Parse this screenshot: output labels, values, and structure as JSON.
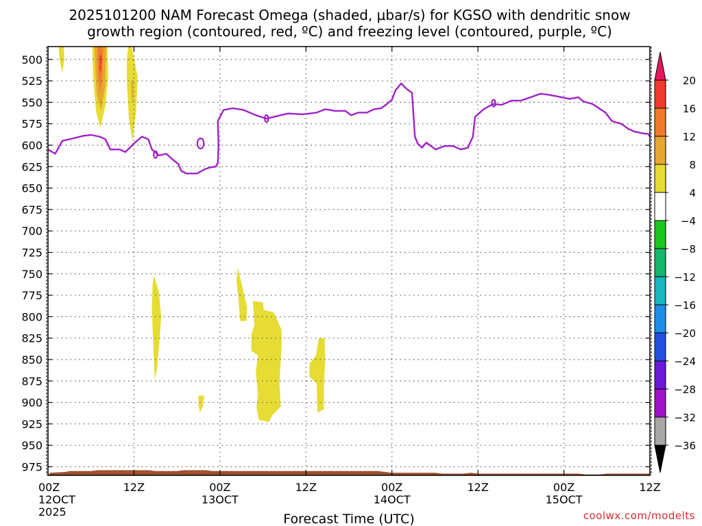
{
  "chart_data": {
    "type": "heatmap",
    "title_lines": [
      "2025101200 NAM Forecast Omega (shaded, μbar/s) for KGSO with dendritic snow",
      "growth region (contoured, red, ºC) and freezing level (contoured, purple, ºC)"
    ],
    "xlabel": "Forecast Time (UTC)",
    "credit": "coolwx.com/modelts",
    "y_axis": {
      "ticks": [
        500,
        525,
        550,
        575,
        600,
        625,
        650,
        675,
        700,
        725,
        750,
        775,
        800,
        825,
        850,
        875,
        900,
        925,
        950,
        975
      ],
      "range": [
        985,
        485
      ],
      "units": "hPa"
    },
    "x_axis": {
      "range_hours": [
        0,
        84
      ],
      "ticks": [
        {
          "hour": 0,
          "line1": "00Z",
          "line2": "12OCT",
          "line3": "2025"
        },
        {
          "hour": 12,
          "line1": "12Z",
          "line2": "",
          "line3": ""
        },
        {
          "hour": 24,
          "line1": "00Z",
          "line2": "13OCT",
          "line3": ""
        },
        {
          "hour": 36,
          "line1": "12Z",
          "line2": "",
          "line3": ""
        },
        {
          "hour": 48,
          "line1": "00Z",
          "line2": "14OCT",
          "line3": ""
        },
        {
          "hour": 60,
          "line1": "12Z",
          "line2": "",
          "line3": ""
        },
        {
          "hour": 72,
          "line1": "00Z",
          "line2": "15OCT",
          "line3": ""
        },
        {
          "hour": 84,
          "line1": "12Z",
          "line2": "",
          "line3": ""
        }
      ]
    },
    "colorbar": {
      "labels": [
        20,
        16,
        12,
        8,
        4,
        -4,
        -8,
        -12,
        -16,
        -20,
        -24,
        -28,
        -32,
        -36
      ],
      "segments": [
        {
          "color": "#e8175d"
        },
        {
          "color": "#f03a2e"
        },
        {
          "color": "#ef7b2a"
        },
        {
          "color": "#e6a733"
        },
        {
          "color": "#e6dc33"
        },
        {
          "color": "#ffffff"
        },
        {
          "color": "#1cc61c"
        },
        {
          "color": "#17b56d"
        },
        {
          "color": "#19b7c0"
        },
        {
          "color": "#1e8fe6"
        },
        {
          "color": "#2350e0"
        },
        {
          "color": "#6a19d6"
        },
        {
          "color": "#a012c8"
        },
        {
          "color": "#a6a6a6"
        },
        {
          "color": "#000000"
        }
      ]
    },
    "omega_shaded_regions": [
      {
        "level": 4,
        "points": [
          [
            1.5,
            485
          ],
          [
            2.2,
            485
          ],
          [
            2.3,
            500
          ],
          [
            2.0,
            515
          ],
          [
            1.6,
            500
          ]
        ]
      },
      {
        "level": 4,
        "points": [
          [
            6.2,
            485
          ],
          [
            8.3,
            485
          ],
          [
            8.4,
            520
          ],
          [
            8.0,
            555
          ],
          [
            7.3,
            580
          ],
          [
            6.7,
            560
          ],
          [
            6.3,
            520
          ]
        ]
      },
      {
        "level": 8,
        "points": [
          [
            6.5,
            485
          ],
          [
            8.1,
            485
          ],
          [
            8.0,
            530
          ],
          [
            7.4,
            560
          ],
          [
            6.8,
            540
          ],
          [
            6.6,
            510
          ]
        ]
      },
      {
        "level": 12,
        "points": [
          [
            6.9,
            485
          ],
          [
            7.7,
            485
          ],
          [
            7.6,
            515
          ],
          [
            7.3,
            540
          ],
          [
            7.0,
            520
          ]
        ]
      },
      {
        "level": 16,
        "points": [
          [
            7.2,
            495
          ],
          [
            7.5,
            495
          ],
          [
            7.4,
            515
          ],
          [
            7.2,
            512
          ]
        ]
      },
      {
        "level": 4,
        "points": [
          [
            11.2,
            485
          ],
          [
            11.7,
            485
          ],
          [
            12.5,
            520
          ],
          [
            12.3,
            560
          ],
          [
            11.8,
            595
          ],
          [
            11.3,
            570
          ],
          [
            11.0,
            525
          ],
          [
            11.0,
            500
          ]
        ]
      },
      {
        "level": 8,
        "points": [
          [
            11.6,
            525
          ],
          [
            11.9,
            525
          ],
          [
            11.9,
            545
          ],
          [
            11.7,
            550
          ]
        ]
      },
      {
        "level": 4,
        "points": [
          [
            14.8,
            752
          ],
          [
            15.5,
            772
          ],
          [
            15.8,
            800
          ],
          [
            15.5,
            835
          ],
          [
            15.2,
            862
          ],
          [
            14.9,
            873
          ],
          [
            14.7,
            835
          ],
          [
            14.5,
            790
          ],
          [
            14.6,
            762
          ]
        ]
      },
      {
        "level": 4,
        "points": [
          [
            21.0,
            892
          ],
          [
            21.8,
            892
          ],
          [
            21.6,
            905
          ],
          [
            21.2,
            912
          ],
          [
            21.0,
            902
          ]
        ]
      },
      {
        "level": 4,
        "points": [
          [
            26.5,
            743
          ],
          [
            27.2,
            768
          ],
          [
            27.8,
            790
          ],
          [
            27.7,
            805
          ],
          [
            26.8,
            805
          ],
          [
            26.6,
            780
          ],
          [
            26.3,
            758
          ]
        ]
      },
      {
        "level": 4,
        "points": [
          [
            28.6,
            782
          ],
          [
            30.0,
            783
          ],
          [
            30.1,
            792
          ],
          [
            31.5,
            795
          ],
          [
            32.6,
            815
          ],
          [
            32.6,
            835
          ],
          [
            32.3,
            878
          ],
          [
            32.5,
            905
          ],
          [
            31.3,
            915
          ],
          [
            30.8,
            923
          ],
          [
            29.4,
            920
          ],
          [
            29.1,
            905
          ],
          [
            29.3,
            890
          ],
          [
            29.0,
            865
          ],
          [
            29.3,
            845
          ],
          [
            28.4,
            840
          ],
          [
            28.4,
            820
          ],
          [
            28.8,
            810
          ]
        ]
      },
      {
        "level": 4,
        "points": [
          [
            37.8,
            825
          ],
          [
            38.6,
            825
          ],
          [
            38.7,
            850
          ],
          [
            38.5,
            880
          ],
          [
            38.5,
            908
          ],
          [
            37.6,
            912
          ],
          [
            37.5,
            878
          ],
          [
            36.5,
            870
          ],
          [
            36.5,
            855
          ],
          [
            37.4,
            845
          ]
        ]
      }
    ],
    "freezing_level_0C": [
      [
        0.0,
        605
      ],
      [
        1.0,
        610
      ],
      [
        2.0,
        595
      ],
      [
        3.5,
        592
      ],
      [
        5.0,
        589
      ],
      [
        6.0,
        588
      ],
      [
        7.2,
        590
      ],
      [
        8.0,
        593
      ],
      [
        8.7,
        605
      ],
      [
        10.0,
        605
      ],
      [
        10.8,
        608
      ],
      [
        12.0,
        598
      ],
      [
        13.1,
        590
      ],
      [
        14.0,
        593
      ],
      [
        14.5,
        605
      ],
      [
        15.5,
        612
      ],
      [
        16.5,
        610
      ],
      [
        17.3,
        616
      ],
      [
        18.2,
        622
      ],
      [
        18.6,
        630
      ],
      [
        19.3,
        633
      ],
      [
        20.8,
        633
      ],
      [
        21.9,
        628
      ],
      [
        22.6,
        626
      ],
      [
        23.4,
        625
      ],
      [
        23.7,
        621
      ],
      [
        23.8,
        600
      ],
      [
        23.7,
        572
      ],
      [
        24.5,
        559
      ],
      [
        25.8,
        557
      ],
      [
        27.3,
        559
      ],
      [
        29.0,
        565
      ],
      [
        30.5,
        569
      ],
      [
        32.0,
        566
      ],
      [
        33.5,
        563
      ],
      [
        35.5,
        564
      ],
      [
        37.5,
        562
      ],
      [
        38.7,
        558
      ],
      [
        40.0,
        560
      ],
      [
        41.5,
        560
      ],
      [
        42.3,
        565
      ],
      [
        43.3,
        562
      ],
      [
        44.5,
        562
      ],
      [
        45.5,
        558
      ],
      [
        46.5,
        557
      ],
      [
        47.3,
        552
      ],
      [
        48.0,
        547
      ],
      [
        48.5,
        536
      ],
      [
        49.3,
        528
      ],
      [
        50.0,
        534
      ],
      [
        50.8,
        539
      ],
      [
        51.2,
        590
      ],
      [
        51.6,
        598
      ],
      [
        52.2,
        603
      ],
      [
        52.8,
        597
      ],
      [
        53.3,
        600
      ],
      [
        54.1,
        605
      ],
      [
        55.3,
        601
      ],
      [
        56.5,
        601
      ],
      [
        57.6,
        605
      ],
      [
        58.6,
        603
      ],
      [
        59.3,
        590
      ],
      [
        59.6,
        567
      ],
      [
        60.8,
        558
      ],
      [
        62.1,
        552
      ],
      [
        63.3,
        553
      ],
      [
        64.7,
        548
      ],
      [
        66.0,
        548
      ],
      [
        67.4,
        544
      ],
      [
        68.7,
        540
      ],
      [
        69.7,
        541
      ],
      [
        71.0,
        543
      ],
      [
        72.8,
        546
      ],
      [
        74.0,
        544
      ],
      [
        74.7,
        549
      ],
      [
        76.0,
        552
      ],
      [
        77.8,
        562
      ],
      [
        78.7,
        572
      ],
      [
        80.0,
        575
      ],
      [
        81.0,
        581
      ],
      [
        81.8,
        584
      ],
      [
        82.9,
        586
      ],
      [
        83.8,
        587
      ],
      [
        84.0,
        590
      ]
    ],
    "freezing_level_small_contours": [
      {
        "hour": 15.0,
        "pressure": 611,
        "rx_hours": 0.25,
        "ry_hpa": 4
      },
      {
        "hour": 21.3,
        "pressure": 598,
        "rx_hours": 0.45,
        "ry_hpa": 6
      },
      {
        "hour": 30.5,
        "pressure": 569,
        "rx_hours": 0.25,
        "ry_hpa": 4
      },
      {
        "hour": 62.2,
        "pressure": 551,
        "rx_hours": 0.25,
        "ry_hpa": 4
      }
    ],
    "terrain": {
      "color": "#a0522d",
      "surface": [
        [
          0.0,
          985
        ],
        [
          0.3,
          982
        ],
        [
          2.5,
          981
        ],
        [
          3.0,
          980
        ],
        [
          6.0,
          980
        ],
        [
          7.0,
          979
        ],
        [
          14.0,
          979
        ],
        [
          15.0,
          980
        ],
        [
          18.0,
          980
        ],
        [
          19.0,
          979
        ],
        [
          22.0,
          979
        ],
        [
          23.0,
          980
        ],
        [
          42.0,
          980
        ],
        [
          46.0,
          980
        ],
        [
          48.0,
          982
        ],
        [
          54.0,
          982
        ],
        [
          55.0,
          983
        ],
        [
          58.0,
          983
        ],
        [
          59.0,
          982
        ],
        [
          60.0,
          983
        ],
        [
          74.0,
          983
        ],
        [
          75.0,
          984
        ],
        [
          77.0,
          984
        ],
        [
          78.0,
          983
        ],
        [
          84.0,
          983
        ]
      ]
    }
  }
}
